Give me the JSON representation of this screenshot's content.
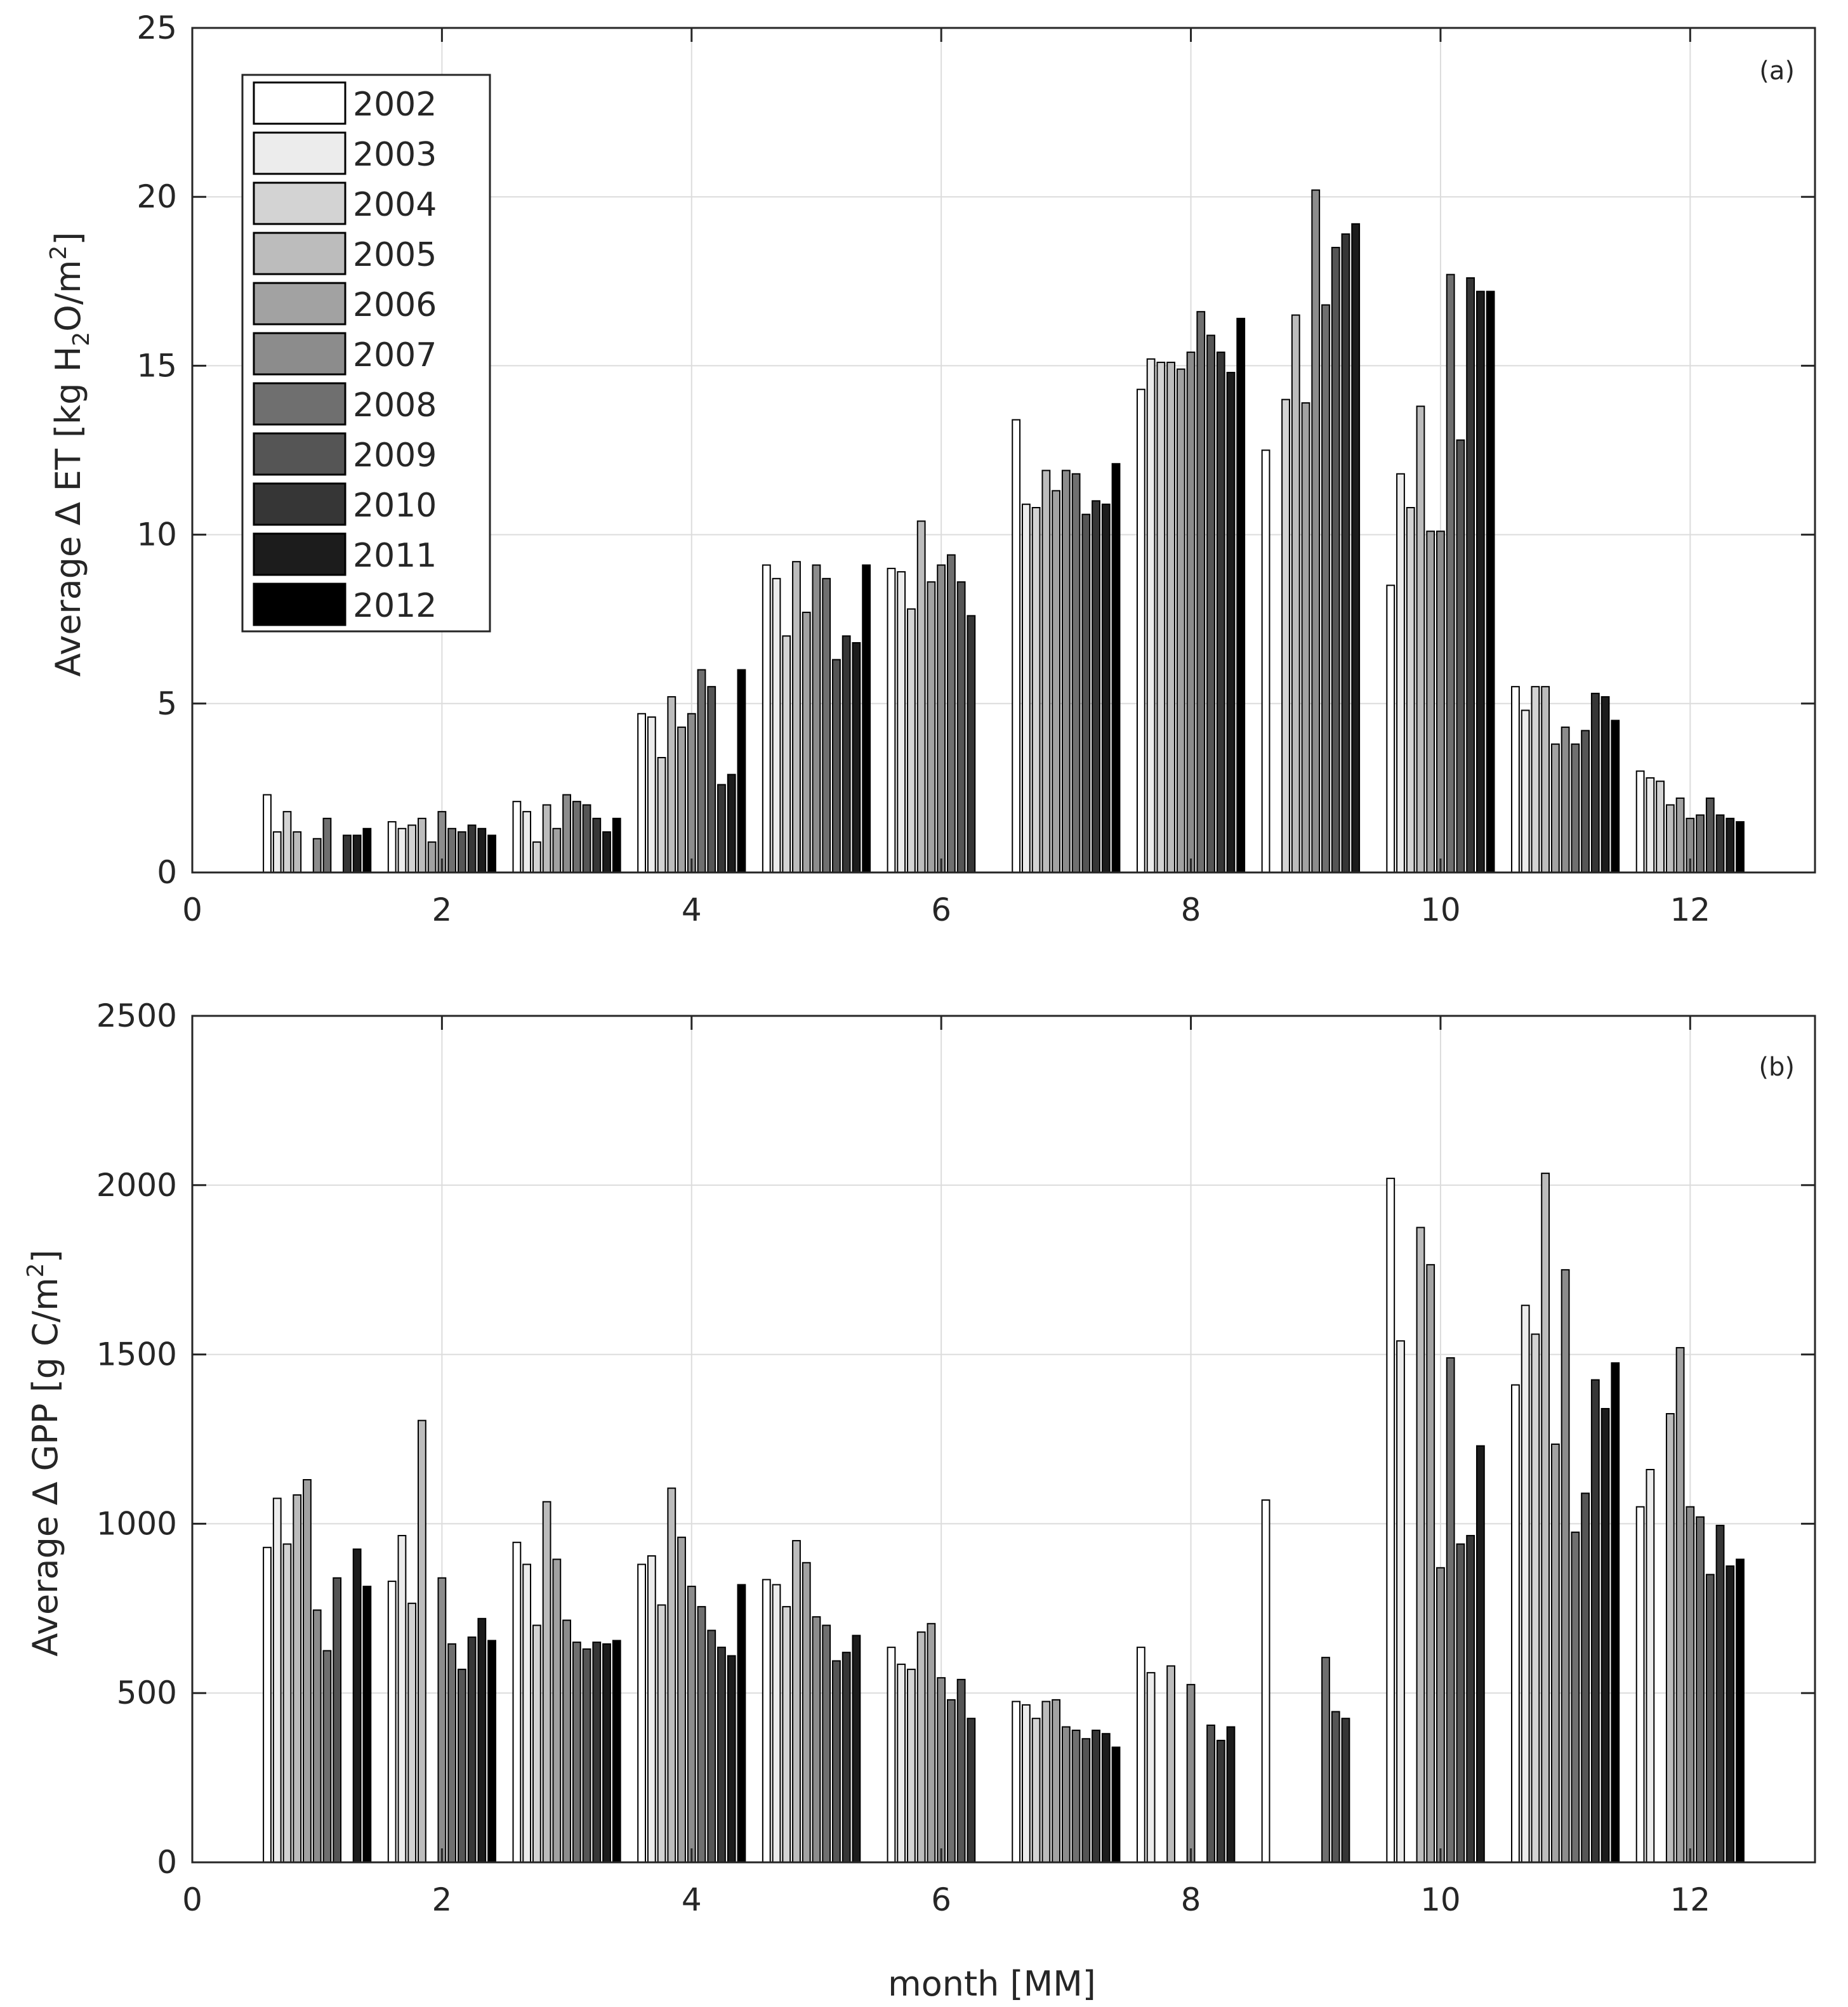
{
  "chart_data": [
    {
      "type": "bar",
      "panel_label": "(a)",
      "title": "",
      "xlabel": "",
      "ylabel": "Average ∆ ET [kg H2O/m2]",
      "ylabel_parts": {
        "pre": "Average ∆ ET [kg H",
        "sub": "2",
        "mid": "O/m",
        "sup": "2",
        "post": "]"
      },
      "xlim": [
        0,
        13
      ],
      "ylim": [
        0,
        25
      ],
      "xticks": [
        "0",
        "2",
        "4",
        "6",
        "8",
        "10",
        "12"
      ],
      "xtick_values": [
        0,
        2,
        4,
        6,
        8,
        10,
        12
      ],
      "yticks": [
        "0",
        "5",
        "10",
        "15",
        "20",
        "25"
      ],
      "ytick_values": [
        0,
        5,
        10,
        15,
        20,
        25
      ],
      "grid": true,
      "legend_position": "top-left",
      "categories": [
        1,
        2,
        3,
        4,
        5,
        6,
        7,
        8,
        9,
        10,
        11,
        12
      ],
      "series": [
        {
          "name": "2002",
          "values": [
            2.3,
            1.5,
            2.1,
            4.7,
            9.1,
            9.0,
            13.4,
            14.3,
            12.5,
            8.5,
            5.5,
            3.0
          ]
        },
        {
          "name": "2003",
          "values": [
            1.2,
            1.3,
            1.8,
            4.6,
            8.7,
            8.9,
            10.9,
            15.2,
            0,
            11.8,
            4.8,
            2.8
          ]
        },
        {
          "name": "2004",
          "values": [
            1.8,
            1.4,
            0.9,
            3.4,
            7.0,
            7.8,
            10.8,
            15.1,
            14.0,
            10.8,
            5.5,
            2.7
          ]
        },
        {
          "name": "2005",
          "values": [
            1.2,
            1.6,
            2.0,
            5.2,
            9.2,
            10.4,
            11.9,
            15.1,
            16.5,
            13.8,
            5.5,
            2.0
          ]
        },
        {
          "name": "2006",
          "values": [
            0,
            0.9,
            1.3,
            4.3,
            7.7,
            8.6,
            11.3,
            14.9,
            13.9,
            10.1,
            3.8,
            2.2
          ]
        },
        {
          "name": "2007",
          "values": [
            1.0,
            1.8,
            2.3,
            4.7,
            9.1,
            9.1,
            11.9,
            15.4,
            20.2,
            10.1,
            4.3,
            1.6
          ]
        },
        {
          "name": "2008",
          "values": [
            1.6,
            1.3,
            2.1,
            6.0,
            8.7,
            9.4,
            11.8,
            16.6,
            16.8,
            17.7,
            3.8,
            1.7
          ]
        },
        {
          "name": "2009",
          "values": [
            0,
            1.2,
            2.0,
            5.5,
            6.3,
            8.6,
            10.6,
            15.9,
            18.5,
            12.8,
            4.2,
            2.2
          ]
        },
        {
          "name": "2010",
          "values": [
            1.1,
            1.4,
            1.6,
            2.6,
            7.0,
            7.6,
            11.0,
            15.4,
            18.9,
            17.6,
            5.3,
            1.7
          ]
        },
        {
          "name": "2011",
          "values": [
            1.1,
            1.3,
            1.2,
            2.9,
            6.8,
            0,
            10.9,
            14.8,
            19.2,
            17.2,
            5.2,
            1.6
          ]
        },
        {
          "name": "2012",
          "values": [
            1.3,
            1.1,
            1.6,
            6.0,
            9.1,
            0,
            12.1,
            16.4,
            0,
            17.2,
            4.5,
            1.5
          ]
        }
      ]
    },
    {
      "type": "bar",
      "panel_label": "(b)",
      "title": "",
      "xlabel": "month [MM]",
      "ylabel": "Average ∆ GPP [g C/m2]",
      "ylabel_parts": {
        "pre": "Average ∆ GPP [g C/m",
        "sup": "2",
        "post": "]"
      },
      "xlim": [
        0,
        13
      ],
      "ylim": [
        0,
        2500
      ],
      "xticks": [
        "0",
        "2",
        "4",
        "6",
        "8",
        "10",
        "12"
      ],
      "xtick_values": [
        0,
        2,
        4,
        6,
        8,
        10,
        12
      ],
      "yticks": [
        "0",
        "500",
        "1000",
        "1500",
        "2000",
        "2500"
      ],
      "ytick_values": [
        0,
        500,
        1000,
        1500,
        2000,
        2500
      ],
      "grid": true,
      "categories": [
        1,
        2,
        3,
        4,
        5,
        6,
        7,
        8,
        9,
        10,
        11,
        12
      ],
      "series": [
        {
          "name": "2002",
          "values": [
            930,
            830,
            945,
            880,
            835,
            635,
            475,
            635,
            1070,
            2020,
            1410,
            1050
          ]
        },
        {
          "name": "2003",
          "values": [
            1075,
            965,
            880,
            905,
            820,
            585,
            465,
            560,
            0,
            1540,
            1645,
            1160
          ]
        },
        {
          "name": "2004",
          "values": [
            940,
            765,
            700,
            760,
            755,
            570,
            425,
            0,
            0,
            0,
            1560,
            0
          ]
        },
        {
          "name": "2005",
          "values": [
            1085,
            1305,
            1065,
            1105,
            950,
            680,
            475,
            580,
            0,
            1875,
            2035,
            1325
          ]
        },
        {
          "name": "2006",
          "values": [
            1130,
            0,
            895,
            960,
            885,
            705,
            480,
            0,
            0,
            1765,
            1235,
            1520
          ]
        },
        {
          "name": "2007",
          "values": [
            745,
            840,
            715,
            815,
            725,
            545,
            400,
            525,
            0,
            870,
            1750,
            1050
          ]
        },
        {
          "name": "2008",
          "values": [
            625,
            645,
            650,
            755,
            700,
            480,
            390,
            0,
            605,
            1490,
            975,
            1020
          ]
        },
        {
          "name": "2009",
          "values": [
            840,
            570,
            630,
            685,
            595,
            540,
            365,
            405,
            445,
            940,
            1090,
            850
          ]
        },
        {
          "name": "2010",
          "values": [
            0,
            665,
            650,
            635,
            620,
            425,
            390,
            360,
            425,
            965,
            1425,
            995
          ]
        },
        {
          "name": "2011",
          "values": [
            925,
            720,
            645,
            610,
            670,
            0,
            380,
            400,
            0,
            1230,
            1340,
            875
          ]
        },
        {
          "name": "2012",
          "values": [
            815,
            655,
            655,
            820,
            0,
            0,
            340,
            0,
            0,
            0,
            1475,
            895
          ]
        }
      ]
    }
  ],
  "legend": {
    "entries": [
      "2002",
      "2003",
      "2004",
      "2005",
      "2006",
      "2007",
      "2008",
      "2009",
      "2010",
      "2011",
      "2012"
    ],
    "colors": [
      "#ffffff",
      "#ececec",
      "#d3d3d3",
      "#bcbcbc",
      "#a2a2a2",
      "#8c8c8c",
      "#6f6f6f",
      "#555555",
      "#363636",
      "#1c1c1c",
      "#000000"
    ]
  }
}
